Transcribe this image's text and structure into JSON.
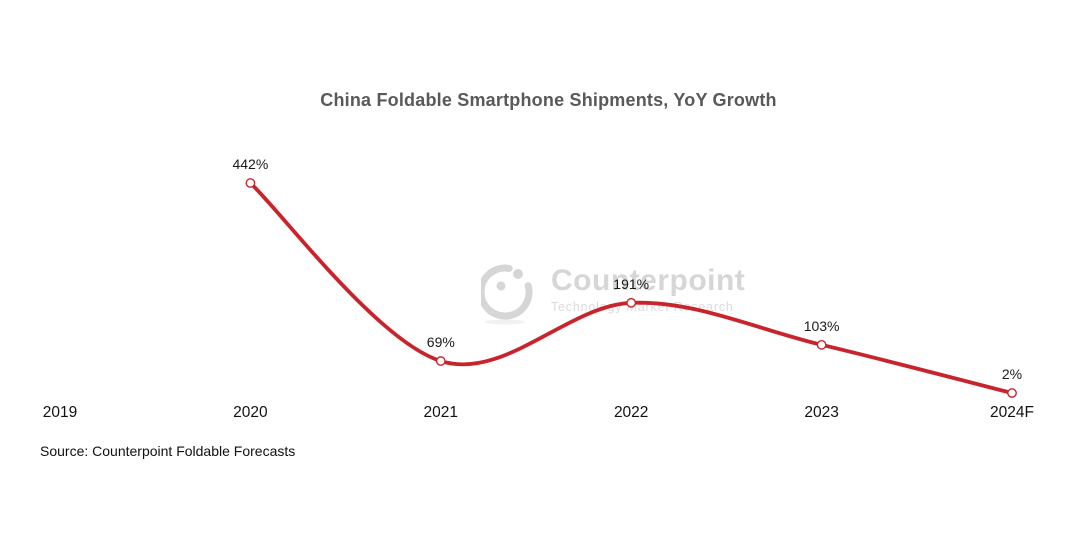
{
  "chart": {
    "title": "China Foldable Smartphone Shipments, YoY Growth",
    "source": "Source: Counterpoint Foldable Forecasts"
  },
  "watermark": {
    "brand": "Counterpoint",
    "tagline": "Technology Market Research",
    "logo_icon": "counterpoint-circle-logo",
    "color": "#d6d6d6"
  },
  "chart_data": {
    "type": "line",
    "title": "China Foldable Smartphone Shipments, YoY Growth",
    "categories": [
      "2019",
      "2020",
      "2021",
      "2022",
      "2023",
      "2024F"
    ],
    "series": [
      {
        "name": "YoY Growth",
        "values": [
          null,
          442,
          69,
          191,
          103,
          2
        ]
      }
    ],
    "values": [
      null,
      442,
      69,
      191,
      103,
      2
    ],
    "data_labels": [
      "",
      "442%",
      "69%",
      "191%",
      "103%",
      "2%"
    ],
    "label_format": "percent",
    "xlabel": "",
    "ylabel": "",
    "ylim": [
      0,
      460
    ],
    "grid": false,
    "axes_visible": false,
    "legend": "none",
    "line_color": "#c9242c",
    "marker": "open-circle",
    "marker_fill": "#ffffff",
    "source": "Source: Counterpoint Foldable Forecasts"
  }
}
